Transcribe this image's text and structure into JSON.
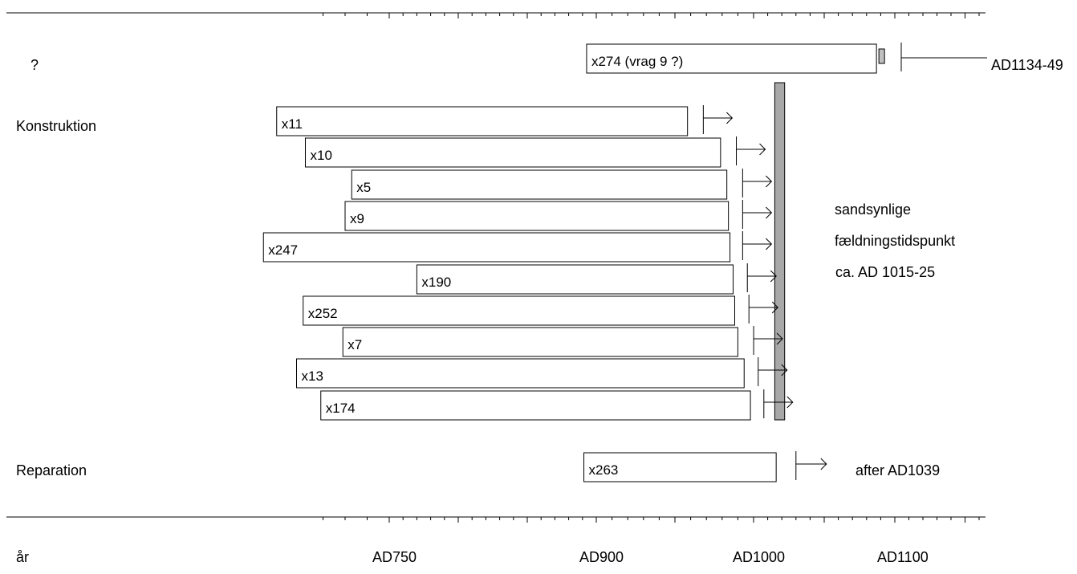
{
  "chart_data": {
    "type": "timeline",
    "x_axis_label": "år",
    "x_ticks": [
      {
        "label": "AD750",
        "year": 750
      },
      {
        "label": "AD900",
        "year": 900
      },
      {
        "label": "AD1000",
        "year": 1000
      },
      {
        "label": "AD1100",
        "year": 1100
      }
    ],
    "groups": [
      {
        "label": "?"
      },
      {
        "label": "Konstruktion"
      },
      {
        "label": "Reparation"
      }
    ],
    "samples": [
      {
        "id": "x274",
        "label": "x274   (vrag 9 ?)",
        "group": "?",
        "start": 893,
        "end": 1087,
        "sapwood_end": 1091,
        "felling_label": "AD1134-49",
        "felling_marker_year": 1100,
        "arrow": false
      },
      {
        "id": "x11",
        "label": "x11",
        "group": "Konstruktion",
        "start": 699,
        "end": 958,
        "marker_year": 966,
        "arrow": true
      },
      {
        "id": "x10",
        "label": "x10",
        "group": "Konstruktion",
        "start": 712,
        "end": 979,
        "marker_year": 987,
        "arrow": true
      },
      {
        "id": "x5",
        "label": "x5",
        "group": "Konstruktion",
        "start": 733,
        "end": 983,
        "marker_year": 991,
        "arrow": true
      },
      {
        "id": "x9",
        "label": "x9",
        "group": "Konstruktion",
        "start": 730,
        "end": 984,
        "marker_year": 991,
        "arrow": true
      },
      {
        "id": "x247",
        "label": "x247",
        "group": "Konstruktion",
        "start": 693,
        "end": 985,
        "marker_year": 991,
        "arrow": true
      },
      {
        "id": "x190",
        "label": "x190",
        "group": "Konstruktion",
        "start": 770,
        "end": 987,
        "marker_year": 994,
        "arrow": true
      },
      {
        "id": "x252",
        "label": "x252",
        "group": "Konstruktion",
        "start": 711,
        "end": 988,
        "marker_year": 995,
        "arrow": true
      },
      {
        "id": "x7",
        "label": "x7",
        "group": "Konstruktion",
        "start": 729,
        "end": 990,
        "marker_year": 998,
        "arrow": true
      },
      {
        "id": "x13",
        "label": "x13",
        "group": "Konstruktion",
        "start": 708,
        "end": 994,
        "marker_year": 1001,
        "arrow": true
      },
      {
        "id": "x174",
        "label": "x174",
        "group": "Konstruktion",
        "start": 719,
        "end": 998,
        "marker_year": 1005,
        "arrow": true
      },
      {
        "id": "x263",
        "label": "x263",
        "group": "Reparation",
        "start": 891,
        "end": 1016,
        "marker_year": 1030,
        "arrow": true,
        "annotation": "after AD1039"
      }
    ],
    "felling_band": {
      "start": 1015,
      "end": 1022
    },
    "felling_annotation": [
      "sandsynlige",
      "fældningstidspunkt",
      "ca.  AD 1015-25"
    ],
    "colors": {
      "line": "#000000",
      "bar_fill": "#ffffff",
      "band_fill": "#a8a8a8",
      "sapwood_fill": "#c0c0c0"
    }
  }
}
